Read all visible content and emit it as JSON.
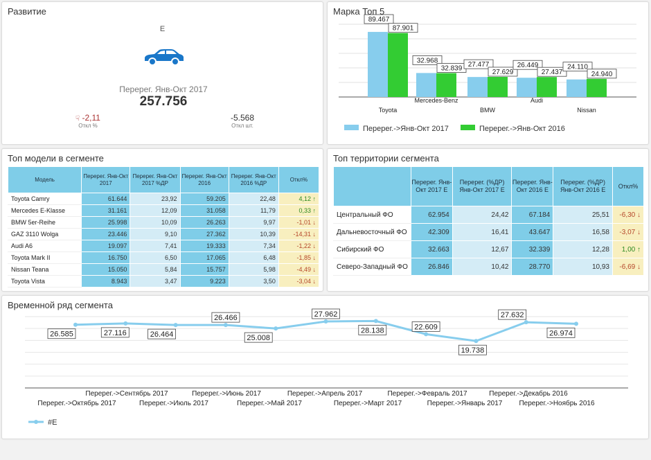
{
  "kpi": {
    "title": "Развитие",
    "segment": "E",
    "car_icon": "car-icon",
    "label": "Перерег. Янв-Окт 2017",
    "value": "257.756",
    "deviation_pct": "-2,11",
    "deviation_pct_caption": "Откл %",
    "deviation_abs": "-5.568",
    "deviation_abs_caption": "Откл шт.",
    "colors": {
      "car": "#1a77c9",
      "negative": "#a33333"
    }
  },
  "brands": {
    "title": "Марка Топ 5",
    "legend": [
      "Перерег.->Янв-Окт 2017",
      "Перерег.->Янв-Окт 2016"
    ],
    "colors": [
      "#87cded",
      "#33cc33"
    ]
  },
  "chart_data": [
    {
      "type": "bar",
      "title": "Марка Топ 5",
      "categories": [
        "Toyota",
        "Mercedes-Benz",
        "BMW",
        "Audi",
        "Nissan"
      ],
      "series": [
        {
          "name": "Перерег.->Янв-Окт 2017",
          "values": [
            89467,
            32968,
            27477,
            26449,
            24110
          ],
          "labels": [
            "89.467",
            "32.968",
            "27.477",
            "26.449",
            "24.110"
          ]
        },
        {
          "name": "Перерег.->Янв-Окт 2016",
          "values": [
            87901,
            32839,
            27629,
            27437,
            24940
          ],
          "labels": [
            "87.901",
            "32.839",
            "27.629",
            "27.437",
            "24.940"
          ]
        }
      ],
      "ylim": [
        0,
        100000
      ],
      "grid": true,
      "legend_position": "bottom"
    },
    {
      "type": "line",
      "title": "Временной ряд сегмента",
      "x": [
        "Перерег.->Октябрь 2017",
        "Перерег.->Сентябрь 2017",
        "Перерег.->Июль 2017",
        "Перерег.->Июнь 2017",
        "Перерег.->Май 2017",
        "Перерег.->Апрель 2017",
        "Перерег.->Март 2017",
        "Перерег.->Февраль 2017",
        "Перерег.->Январь 2017",
        "Перерег.->Декабрь 2016",
        "Перерег.->Ноябрь 2016"
      ],
      "series": [
        {
          "name": "#E",
          "values": [
            26585,
            27116,
            26464,
            26466,
            25008,
            27962,
            28138,
            22609,
            19738,
            27632,
            26974
          ],
          "labels": [
            "26.585",
            "27.116",
            "26.464",
            "26.466",
            "25.008",
            "27.962",
            "28.138",
            "22.609",
            "19.738",
            "27.632",
            "26.974"
          ]
        }
      ],
      "ylim": [
        0,
        30000
      ],
      "grid": true,
      "legend_position": "bottom-left",
      "color": "#87cded"
    }
  ],
  "models": {
    "title": "Топ модели в сегменте",
    "headers": [
      "Модель",
      "Перерег. Янв-Окт 2017",
      "Перерег. Янв-Окт 2017 %ДР",
      "Перерег. Янв-Окт 2016",
      "Перерег. Янв-Окт 2016 %ДР",
      "Откл%"
    ],
    "rows": [
      [
        "Toyota Camry",
        "61.644",
        "23,92",
        "59.205",
        "22,48",
        "4,12",
        "up"
      ],
      [
        "Mercedes E-Klasse",
        "31.161",
        "12,09",
        "31.058",
        "11,79",
        "0,33",
        "up"
      ],
      [
        "BMW 5er-Reihe",
        "25.998",
        "10,09",
        "26.263",
        "9,97",
        "-1,01",
        "down"
      ],
      [
        "GAZ 3110 Wolga",
        "23.446",
        "9,10",
        "27.362",
        "10,39",
        "-14,31",
        "down"
      ],
      [
        "Audi A6",
        "19.097",
        "7,41",
        "19.333",
        "7,34",
        "-1,22",
        "down"
      ],
      [
        "Toyota Mark II",
        "16.750",
        "6,50",
        "17.065",
        "6,48",
        "-1,85",
        "down"
      ],
      [
        "Nissan Teana",
        "15.050",
        "5,84",
        "15.757",
        "5,98",
        "-4,49",
        "down"
      ],
      [
        "Toyota Vista",
        "8.943",
        "3,47",
        "9.223",
        "3,50",
        "-3,04",
        "down"
      ]
    ]
  },
  "territories": {
    "title": "Топ территории сегмента",
    "headers": [
      "",
      "Перерег. Янв-Окт 2017 E",
      "Перерег. (%ДР) Янв-Окт 2017 E",
      "Перерег. Янв-Окт 2016 E",
      "Перерег. (%ДР) Янв-Окт 2016 E",
      "Откл%"
    ],
    "rows": [
      [
        "Центральный ФО",
        "62.954",
        "24,42",
        "67.184",
        "25,51",
        "-6,30",
        "down"
      ],
      [
        "Дальневосточный ФО",
        "42.309",
        "16,41",
        "43.647",
        "16,58",
        "-3,07",
        "down"
      ],
      [
        "Сибирский ФО",
        "32.663",
        "12,67",
        "32.339",
        "12,28",
        "1,00",
        "up"
      ],
      [
        "Северо-Западный ФО",
        "26.846",
        "10,42",
        "28.770",
        "10,93",
        "-6,69",
        "down"
      ]
    ]
  },
  "timeseries": {
    "title": "Временной ряд сегмента",
    "legend": "#E"
  }
}
